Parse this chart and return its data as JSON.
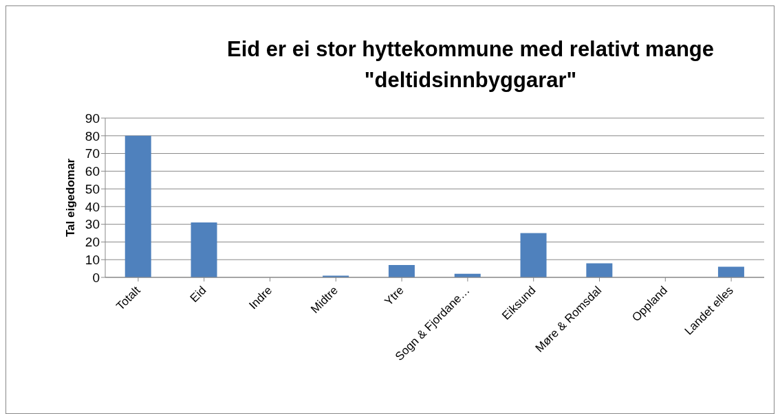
{
  "chart_data": {
    "type": "bar",
    "title": "Eid er ei stor hyttekommune med relativt mange \"deltidsinnbyggarar\"",
    "ylabel": "Tal eigedomar",
    "categories": [
      "Totalt",
      "Eid",
      "Indre",
      "Midtre",
      "Ytre",
      "Sogn & Fjordane…",
      "Eiksund",
      "Møre & Romsdal",
      "Oppland",
      "Landet elles"
    ],
    "values": [
      80,
      31,
      0,
      1,
      7,
      2,
      25,
      8,
      0,
      6
    ],
    "color": "#4f81bd",
    "ylim": [
      0,
      90
    ],
    "yticks": [
      0,
      10,
      20,
      30,
      40,
      50,
      60,
      70,
      80,
      90
    ],
    "grid": "y",
    "legend": false
  }
}
